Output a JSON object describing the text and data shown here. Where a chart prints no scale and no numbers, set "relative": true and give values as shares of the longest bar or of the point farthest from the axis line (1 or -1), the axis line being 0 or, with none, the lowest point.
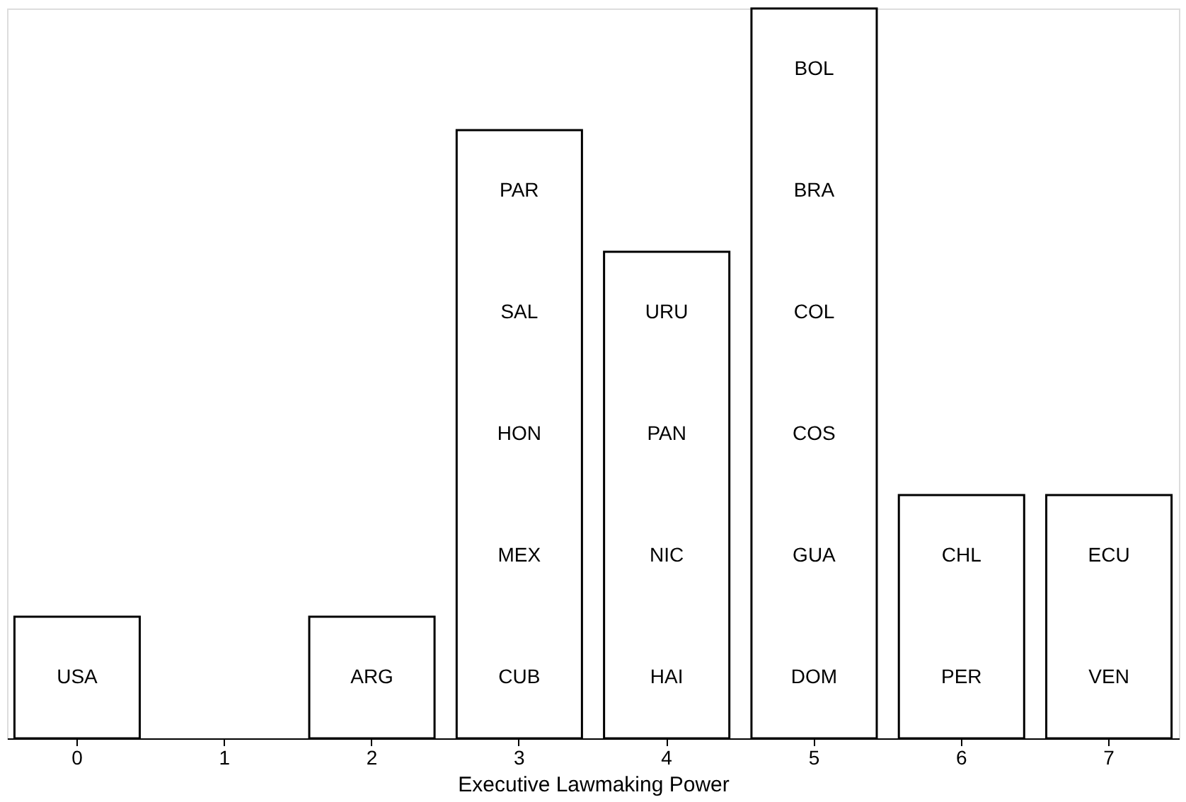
{
  "chart_data": {
    "type": "bar",
    "relative": true,
    "xlabel": "Executive Lawmaking Power",
    "categories": [
      "0",
      "1",
      "2",
      "3",
      "4",
      "5",
      "6",
      "7"
    ],
    "grid": false,
    "legend": false,
    "series": [
      {
        "color": "#ffffff",
        "values": [
          0.1667,
          0,
          0.1667,
          0.8333,
          0.6667,
          1,
          0.3333,
          0.3333
        ]
      }
    ],
    "annotations": [
      "USA",
      "ARG",
      "CUB",
      "MEX",
      "HON",
      "SAL",
      "PAR",
      "HAI",
      "NIC",
      "PAN",
      "URU",
      "DOM",
      "GUA",
      "COS",
      "COL",
      "BRA",
      "BOL",
      "PER",
      "CHL",
      "VEN",
      "ECU"
    ]
  }
}
